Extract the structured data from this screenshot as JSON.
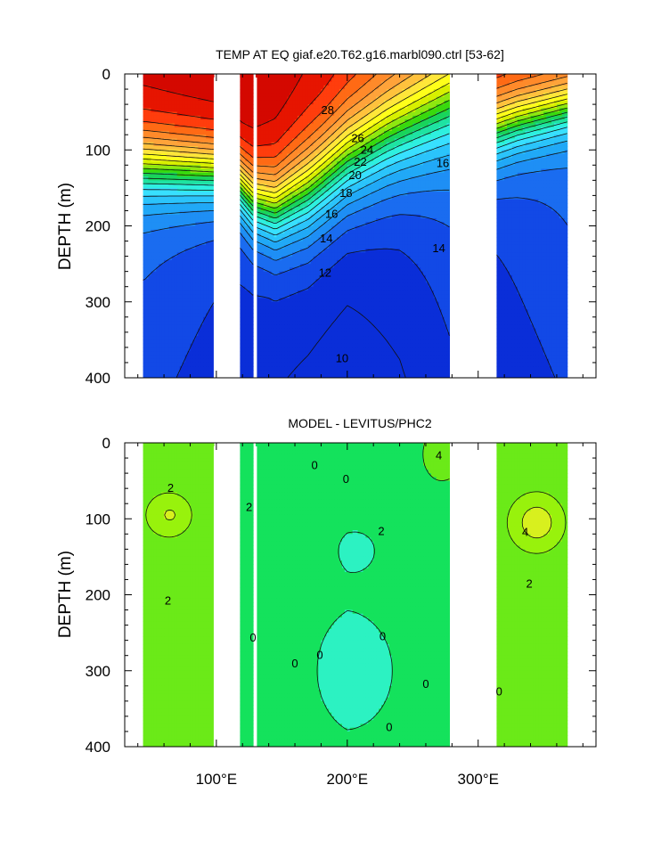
{
  "chart_data": [
    {
      "type": "heatmap",
      "title": "TEMP AT EQ giaf.e20.T62.g16.marbl090.ctrl [53-62]",
      "ylabel": "DEPTH (m)",
      "xlabel": "",
      "xlim": [
        30,
        390
      ],
      "ylim": [
        400,
        0
      ],
      "y_reversed": true,
      "xticks": [
        100,
        200,
        300
      ],
      "xtick_labels": [
        "100°E",
        "200°E",
        "300°E"
      ],
      "yticks": [
        0,
        100,
        200,
        300,
        400
      ],
      "ytick_labels": [
        "0",
        "100",
        "200",
        "300",
        "400"
      ],
      "contour_levels": [
        8,
        9,
        10,
        11,
        12,
        13,
        14,
        15,
        16,
        17,
        18,
        19,
        20,
        21,
        22,
        23,
        24,
        25,
        26,
        27,
        28,
        29,
        30
      ],
      "contour_labels": [
        {
          "text": "28",
          "lon": 185,
          "depth": 48
        },
        {
          "text": "26",
          "lon": 208,
          "depth": 85
        },
        {
          "text": "24",
          "lon": 215,
          "depth": 100
        },
        {
          "text": "22",
          "lon": 210,
          "depth": 116
        },
        {
          "text": "20",
          "lon": 206,
          "depth": 134
        },
        {
          "text": "18",
          "lon": 199,
          "depth": 157
        },
        {
          "text": "16",
          "lon": 188,
          "depth": 185
        },
        {
          "text": "16",
          "lon": 273,
          "depth": 118
        },
        {
          "text": "14",
          "lon": 184,
          "depth": 217
        },
        {
          "text": "14",
          "lon": 270,
          "depth": 230
        },
        {
          "text": "12",
          "lon": 183,
          "depth": 262
        },
        {
          "text": "10",
          "lon": 196,
          "depth": 375
        }
      ],
      "land_gaps_lon": [
        [
          98,
          118
        ],
        [
          129,
          131
        ],
        [
          279,
          314
        ],
        [
          369,
          390
        ]
      ],
      "data_start_lon": 45
    },
    {
      "type": "heatmap",
      "title": "MODEL - LEVITUS/PHC2",
      "ylabel": "DEPTH (m)",
      "xlabel": "",
      "xlim": [
        30,
        390
      ],
      "ylim": [
        400,
        0
      ],
      "y_reversed": true,
      "xticks": [
        100,
        200,
        300
      ],
      "xtick_labels": [
        "100°E",
        "200°E",
        "300°E"
      ],
      "yticks": [
        0,
        100,
        200,
        300,
        400
      ],
      "ytick_labels": [
        "0",
        "100",
        "200",
        "300",
        "400"
      ],
      "contour_levels": [
        -2,
        -1,
        0,
        1,
        2,
        3,
        4,
        5
      ],
      "contour_labels": [
        {
          "text": "2",
          "lon": 65,
          "depth": 60
        },
        {
          "text": "2",
          "lon": 63,
          "depth": 208
        },
        {
          "text": "2",
          "lon": 125,
          "depth": 85
        },
        {
          "text": "0",
          "lon": 175,
          "depth": 30
        },
        {
          "text": "0",
          "lon": 199,
          "depth": 48
        },
        {
          "text": "2",
          "lon": 226,
          "depth": 117
        },
        {
          "text": "4",
          "lon": 270,
          "depth": 17
        },
        {
          "text": "4",
          "lon": 336,
          "depth": 118
        },
        {
          "text": "2",
          "lon": 339,
          "depth": 186
        },
        {
          "text": "0",
          "lon": 128,
          "depth": 257
        },
        {
          "text": "0",
          "lon": 160,
          "depth": 291
        },
        {
          "text": "0",
          "lon": 179,
          "depth": 280
        },
        {
          "text": "0",
          "lon": 227,
          "depth": 255
        },
        {
          "text": "0",
          "lon": 260,
          "depth": 318
        },
        {
          "text": "0",
          "lon": 316,
          "depth": 328
        },
        {
          "text": "0",
          "lon": 232,
          "depth": 375
        }
      ],
      "land_gaps_lon": [
        [
          98,
          118
        ],
        [
          129,
          131
        ],
        [
          279,
          314
        ],
        [
          369,
          390
        ]
      ],
      "data_start_lon": 45
    }
  ]
}
